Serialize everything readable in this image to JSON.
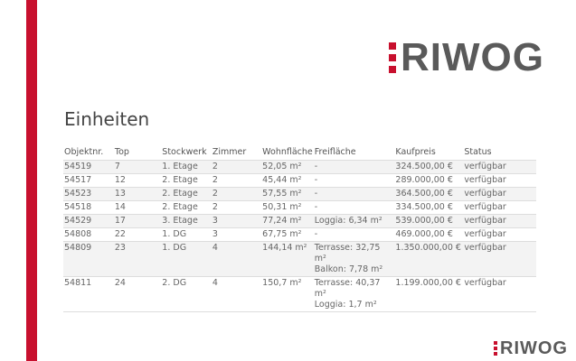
{
  "brand": {
    "logo_text": "RIWOG",
    "accent": "#c8102e"
  },
  "title": "Einheiten",
  "table": {
    "headers": [
      "Objektnr.",
      "Top",
      "Stockwerk",
      "Zimmer",
      "Wohnfläche",
      "Freifläche",
      "Kaufpreis",
      "Status"
    ],
    "rows": [
      [
        "54519",
        "7",
        "1. Etage",
        "2",
        "52,05 m²",
        "-",
        "324.500,00 €",
        "verfügbar"
      ],
      [
        "54517",
        "12",
        "2. Etage",
        "2",
        "45,44 m²",
        "-",
        "289.000,00 €",
        "verfügbar"
      ],
      [
        "54523",
        "13",
        "2. Etage",
        "2",
        "57,55 m²",
        "-",
        "364.500,00 €",
        "verfügbar"
      ],
      [
        "54518",
        "14",
        "2. Etage",
        "2",
        "50,31 m²",
        "-",
        "334.500,00 €",
        "verfügbar"
      ],
      [
        "54529",
        "17",
        "3. Etage",
        "3",
        "77,24 m²",
        "Loggia: 6,34 m²",
        "539.000,00 €",
        "verfügbar"
      ],
      [
        "54808",
        "22",
        "1. DG",
        "3",
        "67,75 m²",
        "-",
        "469.000,00 €",
        "verfügbar"
      ],
      [
        "54809",
        "23",
        "1. DG",
        "4",
        "144,14 m²",
        "Terrasse: 32,75 m²\nBalkon: 7,78 m²",
        "1.350.000,00 €",
        "verfügbar"
      ],
      [
        "54811",
        "24",
        "2. DG",
        "4",
        "150,7 m²",
        "Terrasse: 40,37 m²\nLoggia: 1,7 m²",
        "1.199.000,00 €",
        "verfügbar"
      ]
    ]
  }
}
